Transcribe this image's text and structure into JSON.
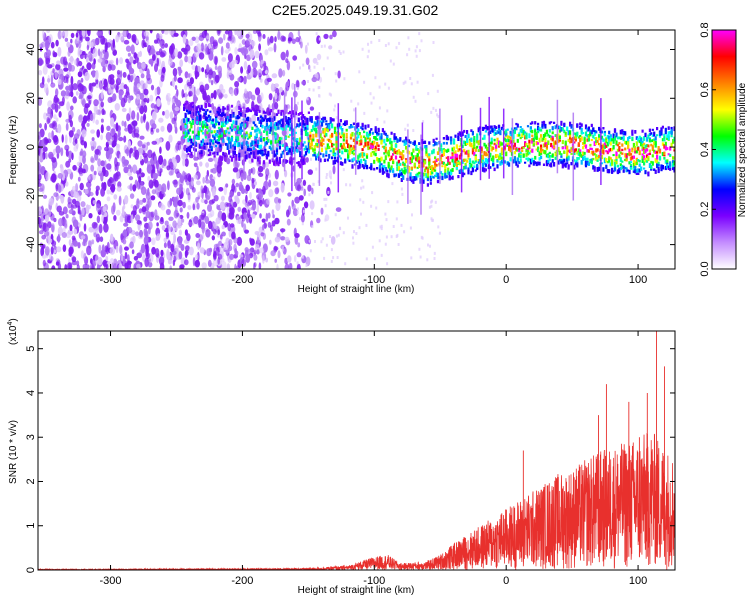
{
  "title": "C2E5.2025.049.19.31.G02",
  "chart_data": [
    {
      "type": "heatmap",
      "xlabel": "Height of straight line (km)",
      "ylabel": "Frequency (Hz)",
      "xlim": [
        -355,
        128
      ],
      "ylim": [
        -50,
        48
      ],
      "x_ticks": [
        -300,
        -200,
        -100,
        0,
        100
      ],
      "x_tick_labels": [
        "-300",
        "-200",
        "-100",
        "0",
        "100"
      ],
      "y_ticks": [
        -40,
        -20,
        0,
        20,
        40
      ],
      "y_tick_labels": [
        "-40",
        "-20",
        "0",
        "20",
        "40"
      ],
      "colorbar": {
        "label": "Normalized spectral amplitude",
        "range": [
          0,
          0.8
        ],
        "ticks": [
          0,
          0.2,
          0.4,
          0.6,
          0.8
        ],
        "tick_labels": [
          "0.0",
          "0.2",
          "0.4",
          "0.6",
          "0.8"
        ],
        "colors": [
          "#ffffff",
          "#c48cff",
          "#7a00ff",
          "#0000ff",
          "#00ffff",
          "#00ff00",
          "#ffff00",
          "#ff8000",
          "#ff0000",
          "#ff00ff"
        ]
      },
      "ridge": {
        "x": [
          -240,
          -200,
          -160,
          -140,
          -120,
          -100,
          -80,
          -60,
          -40,
          -20,
          0,
          20,
          40,
          60,
          80,
          100,
          120
        ],
        "frequency": [
          8,
          6,
          4,
          4,
          2,
          0,
          -4,
          -6,
          -3,
          0,
          1,
          2,
          2,
          1,
          -1,
          -2,
          0
        ]
      }
    },
    {
      "type": "line",
      "xlabel": "Height of straight line (km)",
      "ylabel": "SNR (10 * v/v)",
      "y_scale_note": "(x10^4)",
      "y_scale_base": "(x10",
      "y_scale_exp": "4",
      "xlim": [
        -355,
        128
      ],
      "ylim": [
        0,
        5.4
      ],
      "x_ticks": [
        -300,
        -200,
        -100,
        0,
        100
      ],
      "x_tick_labels": [
        "-300",
        "-200",
        "-100",
        "0",
        "100"
      ],
      "y_ticks": [
        0,
        1,
        2,
        3,
        4,
        5
      ],
      "y_tick_labels": [
        "0",
        "1",
        "2",
        "3",
        "4",
        "5"
      ],
      "line_color": "#e8302d",
      "envelope": {
        "x": [
          -355,
          -300,
          -250,
          -200,
          -150,
          -120,
          -110,
          -100,
          -90,
          -80,
          -60,
          -50,
          -40,
          -30,
          -20,
          -10,
          0,
          10,
          20,
          30,
          40,
          50,
          60,
          70,
          80,
          90,
          100,
          110,
          120,
          128
        ],
        "y": [
          0.02,
          0.02,
          0.03,
          0.03,
          0.04,
          0.1,
          0.2,
          0.3,
          0.35,
          0.15,
          0.2,
          0.35,
          0.6,
          0.8,
          1.0,
          1.2,
          1.4,
          1.6,
          1.8,
          2.0,
          2.2,
          2.3,
          2.5,
          2.7,
          2.8,
          2.9,
          3.0,
          3.2,
          2.8,
          2.6
        ]
      },
      "peaks": [
        {
          "x": 13,
          "y": 2.7
        },
        {
          "x": 70,
          "y": 3.5
        },
        {
          "x": 76,
          "y": 4.2
        },
        {
          "x": 93,
          "y": 3.8
        },
        {
          "x": 101,
          "y": 3.0
        },
        {
          "x": 107,
          "y": 4.0
        },
        {
          "x": 114,
          "y": 5.4
        },
        {
          "x": 120,
          "y": 4.6
        }
      ]
    }
  ]
}
